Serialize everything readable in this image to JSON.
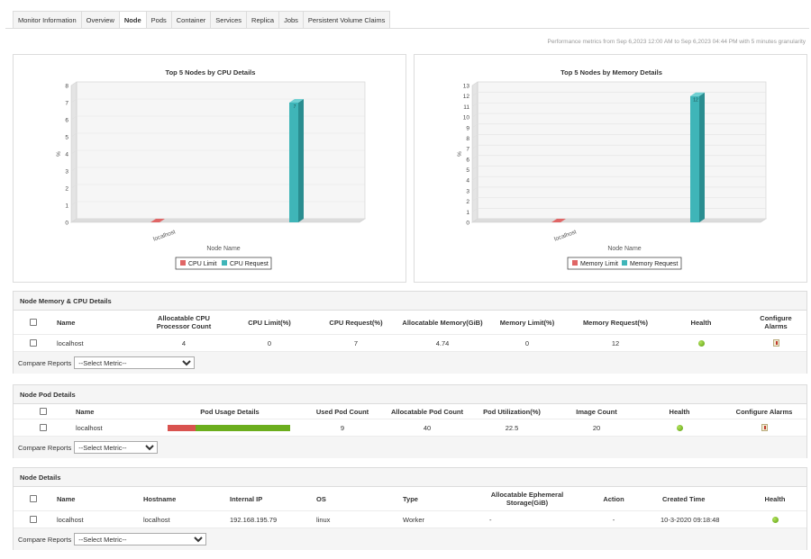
{
  "tabs": [
    {
      "label": "Monitor Information",
      "active": false
    },
    {
      "label": "Overview",
      "active": false
    },
    {
      "label": "Node",
      "active": true
    },
    {
      "label": "Pods",
      "active": false
    },
    {
      "label": "Container",
      "active": false
    },
    {
      "label": "Services",
      "active": false
    },
    {
      "label": "Replica",
      "active": false
    },
    {
      "label": "Jobs",
      "active": false
    },
    {
      "label": "Persistent Volume Claims",
      "active": false
    }
  ],
  "perf_text": "Performance metrics from Sep 6,2023 12:00 AM to Sep 6,2023 04:44 PM with 5 minutes granularity",
  "chart_data": [
    {
      "type": "bar",
      "title": "Top 5 Nodes by CPU Details",
      "ylabel": "%",
      "xlabel": "Node Name",
      "categories": [
        "localhost"
      ],
      "ylim": [
        0,
        8
      ],
      "yticks": [
        "0",
        "1",
        "2",
        "3",
        "4",
        "5",
        "6",
        "7",
        "8"
      ],
      "series": [
        {
          "name": "CPU Limit",
          "values": [
            0
          ],
          "color": "#e06666"
        },
        {
          "name": "CPU Request",
          "values": [
            7
          ],
          "color": "#3fb5b8"
        }
      ],
      "data_labels": [
        "7"
      ]
    },
    {
      "type": "bar",
      "title": "Top 5 Nodes by Memory Details",
      "ylabel": "%",
      "xlabel": "Node Name",
      "categories": [
        "localhost"
      ],
      "ylim": [
        0,
        13
      ],
      "yticks": [
        "0",
        "1",
        "2",
        "3",
        "4",
        "5",
        "6",
        "7",
        "8",
        "9",
        "10",
        "11",
        "12",
        "13"
      ],
      "series": [
        {
          "name": "Memory Limit",
          "values": [
            0
          ],
          "color": "#e06666"
        },
        {
          "name": "Memory Request",
          "values": [
            12
          ],
          "color": "#3fb5b8"
        }
      ],
      "data_labels": [
        "12"
      ]
    }
  ],
  "memcpu": {
    "title": "Node Memory & CPU Details",
    "headers": {
      "name": "Name",
      "alloc_cpu": "Allocatable CPU Processor Count",
      "cpu_limit": "CPU Limit(%)",
      "cpu_request": "CPU Request(%)",
      "alloc_mem": "Allocatable Memory(GiB)",
      "mem_limit": "Memory Limit(%)",
      "mem_request": "Memory Request(%)",
      "health": "Health",
      "configure": "Configure Alarms"
    },
    "row": {
      "name": "localhost",
      "alloc_cpu": "4",
      "cpu_limit": "0",
      "cpu_request": "7",
      "alloc_mem": "4.74",
      "mem_limit": "0",
      "mem_request": "12"
    },
    "compare_label": "Compare Reports",
    "select_value": "--Select Metric--"
  },
  "pod": {
    "title": "Node Pod Details",
    "headers": {
      "name": "Name",
      "usage": "Pod Usage Details",
      "used": "Used Pod Count",
      "alloc": "Allocatable Pod Count",
      "util": "Pod Utilization(%)",
      "image": "Image Count",
      "health": "Health",
      "configure": "Configure Alarms"
    },
    "row": {
      "name": "localhost",
      "usage_fraction": 0.225,
      "used": "9",
      "alloc": "40",
      "util": "22.5",
      "image": "20"
    },
    "compare_label": "Compare Reports",
    "select_value": "--Select Metric--"
  },
  "details": {
    "title": "Node Details",
    "headers": {
      "name": "Name",
      "hostname": "Hostname",
      "ip": "Internal IP",
      "os": "OS",
      "type": "Type",
      "storage": "Allocatable Ephemeral Storage(GiB)",
      "action": "Action",
      "created": "Created Time",
      "health": "Health"
    },
    "row": {
      "name": "localhost",
      "hostname": "localhost",
      "ip": "192.168.195.79",
      "os": "linux",
      "type": "Worker",
      "storage": "-",
      "action": "-",
      "created": "10-3-2020 09:18:48"
    },
    "compare_label": "Compare Reports",
    "select_value": "--Select Metric--"
  }
}
